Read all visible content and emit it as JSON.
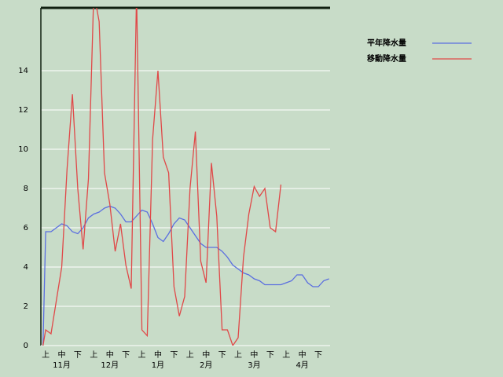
{
  "chart_data": {
    "type": "line",
    "x": [
      -0.5,
      0,
      1,
      2,
      3,
      4,
      5,
      6,
      7,
      8,
      9,
      10,
      11,
      12,
      13,
      14,
      15,
      16,
      17,
      18,
      19,
      20,
      21,
      22,
      23,
      24,
      25,
      26,
      27,
      28,
      29,
      30,
      31,
      32,
      33,
      34,
      35,
      36,
      37,
      38,
      39,
      40,
      41,
      42,
      43,
      44,
      45,
      46,
      47,
      48,
      49,
      50,
      51,
      52,
      53
    ],
    "series": [
      {
        "name": "平年降水量",
        "color": "#5a6ee0",
        "values": [
          0,
          5.8,
          5.8,
          6.0,
          6.2,
          6.1,
          5.8,
          5.7,
          6.0,
          6.5,
          6.7,
          6.8,
          7.0,
          7.1,
          7.0,
          6.7,
          6.3,
          6.3,
          6.6,
          6.9,
          6.8,
          6.2,
          5.5,
          5.3,
          5.7,
          6.2,
          6.5,
          6.4,
          6.0,
          5.6,
          5.2,
          5.0,
          5.0,
          5.0,
          4.8,
          4.5,
          4.1,
          3.9,
          3.7,
          3.6,
          3.4,
          3.3,
          3.1,
          3.1,
          3.1,
          3.1,
          3.2,
          3.3,
          3.6,
          3.6,
          3.2,
          3.0,
          3.0,
          3.3,
          3.4
        ]
      },
      {
        "name": "移動降水量",
        "color": "#e04848",
        "values": [
          0,
          0.8,
          0.6,
          2.3,
          4.0,
          9.0,
          12.8,
          8.0,
          4.9,
          8.5,
          18,
          16.5,
          8.8,
          7.2,
          4.8,
          6.2,
          4.1,
          2.9,
          18,
          0.8,
          0.5,
          10.5,
          14.0,
          9.6,
          8.8,
          3.0,
          1.5,
          2.5,
          8.0,
          10.9,
          4.3,
          3.2,
          9.3,
          6.6,
          0.8,
          0.8,
          0,
          0.4,
          4.5,
          6.7,
          8.1,
          7.6,
          8.0,
          6.0,
          5.8,
          8.2,
          null,
          null,
          null,
          null,
          null,
          null,
          null,
          null,
          null
        ]
      }
    ],
    "xlim": [
      -0.9,
      53.2
    ],
    "xticks": [
      {
        "value": 0,
        "label": "上"
      },
      {
        "value": 3,
        "label": "中"
      },
      {
        "value": 6,
        "label": "下"
      },
      {
        "value": 9,
        "label": "上"
      },
      {
        "value": 12,
        "label": "中"
      },
      {
        "value": 15,
        "label": "下"
      },
      {
        "value": 18,
        "label": "上"
      },
      {
        "value": 21,
        "label": "中"
      },
      {
        "value": 24,
        "label": "下"
      },
      {
        "value": 27,
        "label": "上"
      },
      {
        "value": 30,
        "label": "中"
      },
      {
        "value": 33,
        "label": "下"
      },
      {
        "value": 36,
        "label": "上"
      },
      {
        "value": 39,
        "label": "中"
      },
      {
        "value": 42,
        "label": "下"
      },
      {
        "value": 45,
        "label": "上"
      },
      {
        "value": 48,
        "label": "中"
      },
      {
        "value": 51,
        "label": "下"
      }
    ],
    "months": [
      {
        "value": 3,
        "label": "11月"
      },
      {
        "value": 12,
        "label": "12月"
      },
      {
        "value": 21,
        "label": "1月"
      },
      {
        "value": 30,
        "label": "2月"
      },
      {
        "value": 39,
        "label": "3月"
      },
      {
        "value": 48,
        "label": "4月"
      }
    ],
    "ylim": [
      0,
      17.2
    ],
    "yticks": [
      0,
      2,
      4,
      6,
      8,
      10,
      12,
      14
    ],
    "grid": true,
    "legend": "right"
  }
}
